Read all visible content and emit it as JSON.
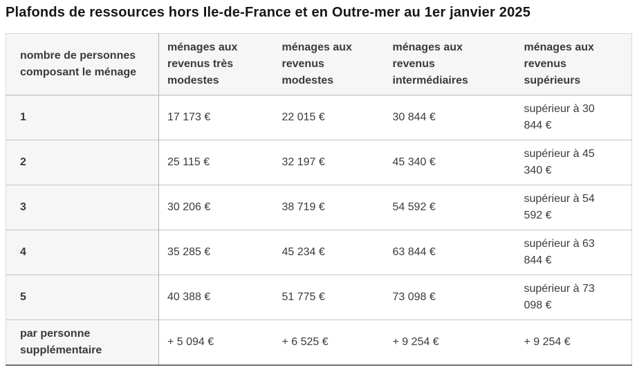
{
  "title": "Plafonds de ressources hors Ile-de-France et en Outre-mer au 1er janvier 2025",
  "table": {
    "columns": [
      "nombre de personnes composant le ménage",
      "ménages aux revenus très modestes",
      "ménages aux revenus modestes",
      "ménages aux revenus intermédiaires",
      "ménages aux revenus supérieurs"
    ],
    "rows": [
      [
        "1",
        "17 173 €",
        "22 015 €",
        "30 844 €",
        "supérieur à 30 844 €"
      ],
      [
        "2",
        "25 115 €",
        "32 197 €",
        "45 340 €",
        "supérieur à 45 340 €"
      ],
      [
        "3",
        "30 206 €",
        "38 719 €",
        "54 592 €",
        "supérieur à 54 592 €"
      ],
      [
        "4",
        "35 285 €",
        "45 234 €",
        "63 844 €",
        "supérieur à 63 844 €"
      ],
      [
        "5",
        "40 388 €",
        "51 775 €",
        "73 098 €",
        "supérieur à 73 098 €"
      ],
      [
        "par personne supplémentaire",
        "+ 5 094 €",
        "+ 6 525 €",
        "+ 9 254 €",
        "+ 9 254 €"
      ]
    ]
  },
  "colors": {
    "title_text": "#161616",
    "cell_text": "#3a3a3a",
    "header_background": "#f6f6f6",
    "row_header_background": "#f6f6f6",
    "cell_background": "#ffffff",
    "border_light": "#d9d9d9",
    "border_medium": "#b3b3b3",
    "table_bottom_border": "#6f6f6f"
  }
}
